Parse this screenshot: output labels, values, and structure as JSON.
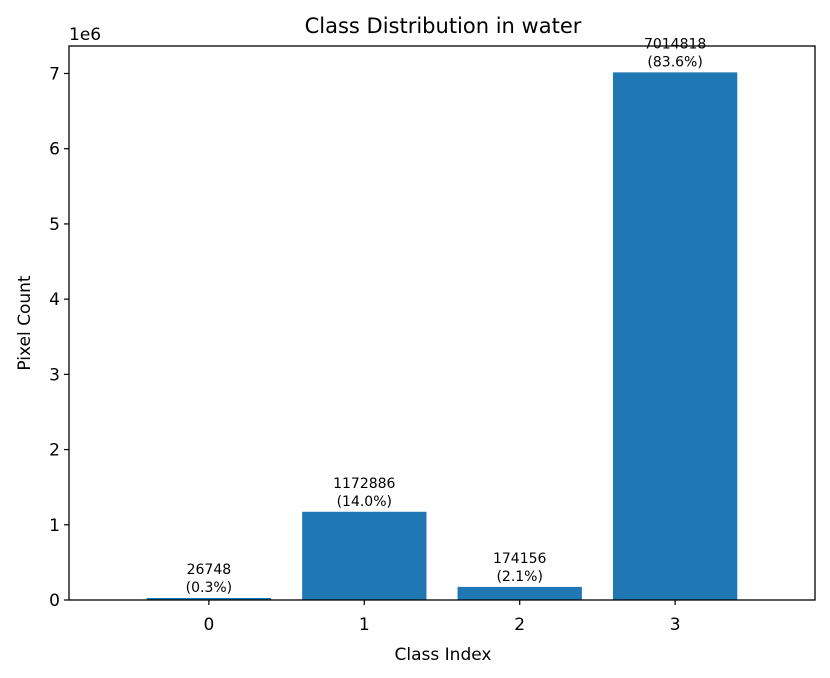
{
  "chart_data": {
    "type": "bar",
    "title": "Class Distribution in water",
    "xlabel": "Class Index",
    "ylabel": "Pixel Count",
    "y_offset_label": "1e6",
    "categories": [
      "0",
      "1",
      "2",
      "3"
    ],
    "values": [
      26748,
      1172886,
      174156,
      7014818
    ],
    "bar_labels": [
      [
        "26748",
        "(0.3%)"
      ],
      [
        "1172886",
        "(14.0%)"
      ],
      [
        "174156",
        "(2.1%)"
      ],
      [
        "7014818",
        "(83.6%)"
      ]
    ],
    "y_ticks": [
      0,
      1000000,
      2000000,
      3000000,
      4000000,
      5000000,
      6000000,
      7000000
    ],
    "y_tick_labels": [
      "0",
      "1",
      "2",
      "3",
      "4",
      "5",
      "6",
      "7"
    ],
    "ylim": [
      0,
      7365559
    ],
    "bar_color": "#1f77b4",
    "grid": false
  }
}
